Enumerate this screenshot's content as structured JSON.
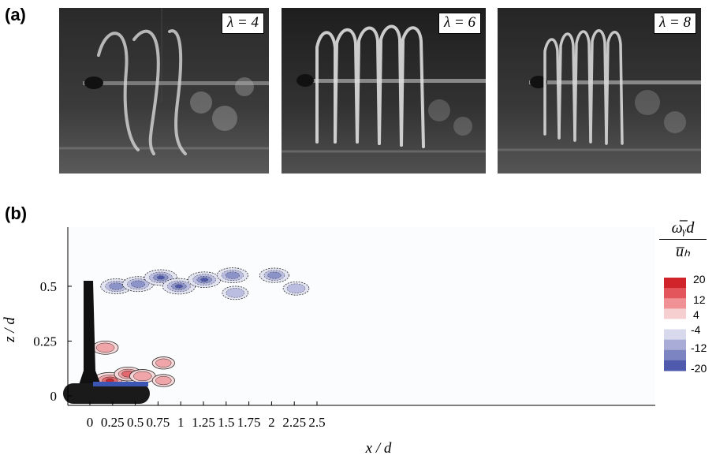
{
  "panel_a": {
    "label": "(a)",
    "photos": [
      {
        "lambda_label": "λ = 4"
      },
      {
        "lambda_label": "λ = 6"
      },
      {
        "lambda_label": "λ = 8"
      }
    ]
  },
  "panel_b": {
    "label": "(b)",
    "colorbar": {
      "title_numerator": "ω̅ᵧd",
      "title_denominator": "u̅ₕ",
      "tick_labels": [
        "20",
        "12",
        "4",
        "-4",
        "-12",
        "-20"
      ],
      "colors": [
        "#d0232a",
        "#e3565b",
        "#ef9195",
        "#f6cfd1",
        "#ffffff",
        "#d9d9ee",
        "#a9acd6",
        "#7d84c2",
        "#4f5aac"
      ]
    }
  },
  "chart_data": {
    "type": "heatmap",
    "xlabel": "x / d",
    "ylabel": "z / d",
    "x_ticks": [
      "0",
      "0.25",
      "0.5",
      "0.75",
      "1",
      "1.25",
      "1.5",
      "1.75",
      "2",
      "2.25",
      "2.5"
    ],
    "y_ticks": [
      "0",
      "0.25",
      "0.5"
    ],
    "xlim": [
      -0.05,
      2.5
    ],
    "ylim": [
      -0.02,
      0.62
    ],
    "vortices": [
      {
        "x": 0.29,
        "z": 0.5,
        "value": -14
      },
      {
        "x": 0.53,
        "z": 0.51,
        "value": -14
      },
      {
        "x": 0.78,
        "z": 0.54,
        "value": -16
      },
      {
        "x": 0.98,
        "z": 0.5,
        "value": -16
      },
      {
        "x": 1.26,
        "z": 0.53,
        "value": -16
      },
      {
        "x": 1.57,
        "z": 0.55,
        "value": -14
      },
      {
        "x": 1.6,
        "z": 0.47,
        "value": -8
      },
      {
        "x": 2.03,
        "z": 0.55,
        "value": -12
      },
      {
        "x": 2.27,
        "z": 0.49,
        "value": -8
      },
      {
        "x": 0.22,
        "z": 0.07,
        "value": 18
      },
      {
        "x": 0.42,
        "z": 0.1,
        "value": 10
      },
      {
        "x": 0.58,
        "z": 0.09,
        "value": 8
      },
      {
        "x": 0.17,
        "z": 0.22,
        "value": 8
      },
      {
        "x": 0.81,
        "z": 0.15,
        "value": 4
      },
      {
        "x": 0.81,
        "z": 0.07,
        "value": 4
      }
    ]
  }
}
